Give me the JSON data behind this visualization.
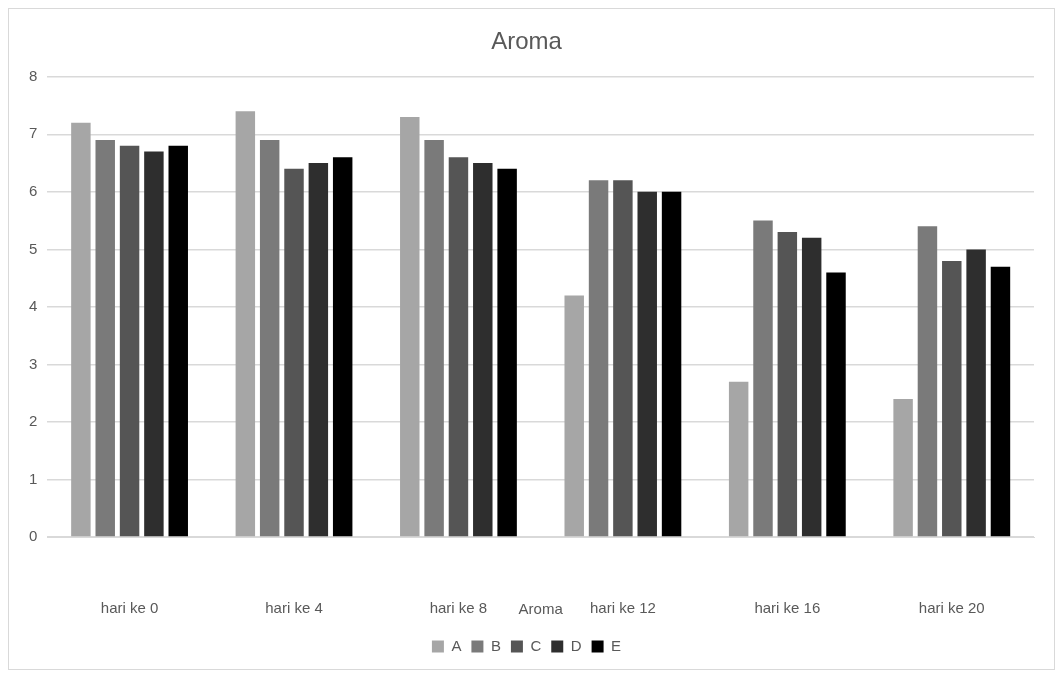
{
  "chart_data": {
    "type": "bar",
    "title": "Aroma",
    "xlabel": "Aroma",
    "categories": [
      "hari ke 0",
      "hari ke 4",
      "hari ke 8",
      "hari ke 12",
      "hari ke 16",
      "hari ke 20"
    ],
    "series": [
      {
        "name": "A",
        "color": "#a6a6a6",
        "values": [
          7.2,
          7.4,
          7.3,
          4.2,
          2.7,
          2.4
        ]
      },
      {
        "name": "B",
        "color": "#7a7a7a",
        "values": [
          6.9,
          6.9,
          6.9,
          6.2,
          5.5,
          5.4
        ]
      },
      {
        "name": "C",
        "color": "#555555",
        "values": [
          6.8,
          6.4,
          6.6,
          6.2,
          5.3,
          4.8
        ]
      },
      {
        "name": "D",
        "color": "#2e2e2e",
        "values": [
          6.7,
          6.5,
          6.5,
          6.0,
          5.2,
          5.0
        ]
      },
      {
        "name": "E",
        "color": "#000000",
        "values": [
          6.8,
          6.6,
          6.4,
          6.0,
          4.6,
          4.7
        ]
      }
    ],
    "ylim": [
      0,
      8
    ],
    "yticks": [
      0,
      1,
      2,
      3,
      4,
      5,
      6,
      7,
      8
    ],
    "grid": "y",
    "legend": "bottom"
  }
}
